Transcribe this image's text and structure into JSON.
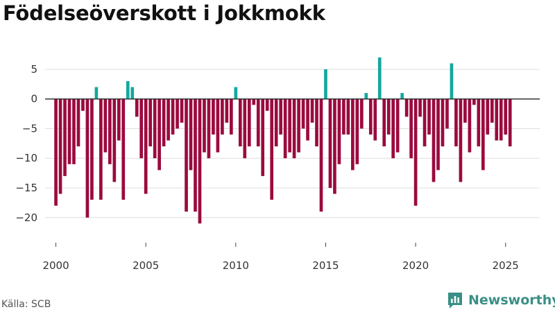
{
  "title": "Födelseöverskott i Jokkmokk",
  "source": "Källa: SCB",
  "brand": {
    "name": "Newsworthy",
    "icon": "newsworthy-logo-icon"
  },
  "colors": {
    "positive": "#13a89e",
    "negative": "#9b0a3e",
    "grid": "#dddddd",
    "zero_line": "#333333"
  },
  "chart_data": {
    "type": "bar",
    "title": "Födelseöverskott i Jokkmokk",
    "xlabel": "",
    "ylabel": "",
    "xlim": [
      1999.4,
      2026.9
    ],
    "ylim": [
      -24,
      8.5
    ],
    "grid": true,
    "x_ticks": [
      2000,
      2005,
      2010,
      2015,
      2020,
      2025
    ],
    "x_tick_labels": [
      "2000",
      "2005",
      "2010",
      "2015",
      "2020",
      "2025"
    ],
    "y_ticks": [
      5,
      0,
      -5,
      -10,
      -15,
      -20
    ],
    "y_tick_labels": [
      "5",
      "0",
      "−5",
      "−10",
      "−15",
      "−20"
    ],
    "x": [
      2000.0,
      2000.25,
      2000.5,
      2000.75,
      2001.0,
      2001.25,
      2001.5,
      2001.75,
      2002.0,
      2002.25,
      2002.5,
      2002.75,
      2003.0,
      2003.25,
      2003.5,
      2003.75,
      2004.0,
      2004.25,
      2004.5,
      2004.75,
      2005.0,
      2005.25,
      2005.5,
      2005.75,
      2006.0,
      2006.25,
      2006.5,
      2006.75,
      2007.0,
      2007.25,
      2007.5,
      2007.75,
      2008.0,
      2008.25,
      2008.5,
      2008.75,
      2009.0,
      2009.25,
      2009.5,
      2009.75,
      2010.0,
      2010.25,
      2010.5,
      2010.75,
      2011.0,
      2011.25,
      2011.5,
      2011.75,
      2012.0,
      2012.25,
      2012.5,
      2012.75,
      2013.0,
      2013.25,
      2013.5,
      2013.75,
      2014.0,
      2014.25,
      2014.5,
      2014.75,
      2015.0,
      2015.25,
      2015.5,
      2015.75,
      2016.0,
      2016.25,
      2016.5,
      2016.75,
      2017.0,
      2017.25,
      2017.5,
      2017.75,
      2018.0,
      2018.25,
      2018.5,
      2018.75,
      2019.0,
      2019.25,
      2019.5,
      2019.75,
      2020.0,
      2020.25,
      2020.5,
      2020.75,
      2021.0,
      2021.25,
      2021.5,
      2021.75,
      2022.0,
      2022.25,
      2022.5,
      2022.75,
      2023.0,
      2023.25,
      2023.5,
      2023.75,
      2024.0,
      2024.25,
      2024.5,
      2024.75,
      2025.0,
      2025.25,
      2025.5,
      2025.75
    ],
    "values": [
      -18,
      -16,
      -13,
      -11,
      -11,
      -8,
      -2,
      -20,
      -17,
      2,
      -17,
      -9,
      -11,
      -14,
      -7,
      -17,
      3,
      2,
      -3,
      -10,
      -16,
      -8,
      -10,
      -12,
      -8,
      -7,
      -6,
      -5,
      -4,
      -19,
      -12,
      -19,
      -21,
      -9,
      -10,
      -6,
      -9,
      -6,
      -4,
      -6,
      2,
      -8,
      -10,
      -8,
      -1,
      -8,
      -13,
      -2,
      -17,
      -8,
      -6,
      -10,
      -9,
      -10,
      -9,
      -5,
      -7,
      -4,
      -8,
      -19,
      5,
      -15,
      -16,
      -11,
      -6,
      -6,
      -12,
      -11,
      -5,
      1,
      -6,
      -7,
      7,
      -8,
      -6,
      -10,
      -9,
      1,
      -3,
      -10,
      -18,
      -3,
      -8,
      -6,
      -14,
      -12,
      -8,
      -5,
      6,
      -8,
      -14,
      -4,
      -9,
      -1,
      -8,
      -12,
      -6,
      -4,
      -7,
      -7,
      -6,
      -8,
      0,
      0
    ]
  }
}
